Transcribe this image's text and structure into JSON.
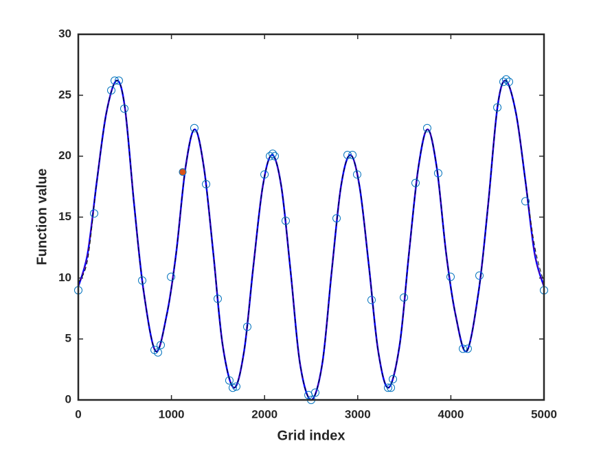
{
  "chart_data": {
    "type": "line",
    "xlabel": "Grid index",
    "ylabel": "Function value",
    "xlim": [
      0,
      5000
    ],
    "ylim": [
      0,
      30
    ],
    "xticks": [
      0,
      1000,
      2000,
      3000,
      4000,
      5000
    ],
    "yticks": [
      0,
      5,
      10,
      15,
      20,
      25,
      30
    ],
    "series": [
      {
        "color": "#0000ff",
        "style": "solid",
        "x": [
          0,
          100,
          200,
          300,
          410,
          500,
          600,
          700,
          830,
          950,
          1050,
          1150,
          1250,
          1350,
          1450,
          1550,
          1670,
          1780,
          1880,
          1980,
          2080,
          2180,
          2280,
          2380,
          2500,
          2620,
          2720,
          2820,
          2920,
          3020,
          3120,
          3220,
          3330,
          3450,
          3550,
          3650,
          3750,
          3850,
          3950,
          4050,
          4170,
          4300,
          4400,
          4500,
          4590,
          4700,
          4800,
          4900,
          5000
        ],
        "values": [
          9.3,
          12,
          18,
          23.5,
          26.2,
          24,
          16,
          9,
          4.0,
          7,
          12,
          19,
          22.2,
          19,
          12,
          4.5,
          1.0,
          4,
          11,
          17.5,
          20.1,
          17.5,
          10.5,
          3,
          0,
          3,
          10.5,
          17.5,
          20.1,
          17.5,
          11,
          4,
          1.0,
          4.5,
          12,
          19,
          22.2,
          19,
          12,
          7,
          4.0,
          9,
          16,
          24,
          26.2,
          23.5,
          18,
          12,
          9.3
        ]
      },
      {
        "color": "#000000",
        "style": "dashed",
        "x": [
          0,
          100,
          200,
          300,
          410,
          500,
          600,
          700,
          830,
          950,
          1050,
          1150,
          1250,
          1350,
          1450,
          1550,
          1670,
          1780,
          1880,
          1980,
          2080,
          2180,
          2280,
          2380,
          2500,
          2620,
          2720,
          2820,
          2920,
          3020,
          3120,
          3220,
          3330,
          3450,
          3550,
          3650,
          3750,
          3850,
          3950,
          4050,
          4170,
          4300,
          4400,
          4500,
          4590,
          4700,
          4800,
          4900,
          5000
        ],
        "values": [
          9.6,
          11.5,
          18,
          23.5,
          26.2,
          24,
          16,
          9,
          4.0,
          7,
          12,
          19,
          22.2,
          19,
          12,
          4.5,
          1.0,
          4,
          11,
          17.5,
          20.1,
          17.5,
          10.5,
          3,
          0,
          3,
          10.5,
          17.5,
          20.1,
          17.5,
          11,
          4,
          1.0,
          4.5,
          12,
          19,
          22.2,
          19,
          12,
          7,
          4.0,
          9,
          16,
          24,
          26.2,
          23.5,
          18,
          12.6,
          9.6
        ]
      },
      {
        "color": "#0072bd",
        "style": "circles",
        "x": [
          0,
          170,
          354,
          391,
          435,
          494,
          686,
          819,
          855,
          885,
          996,
          1246,
          1372,
          1497,
          1622,
          1659,
          1696,
          1814,
          1999,
          2058,
          2087,
          2109,
          2227,
          2471,
          2500,
          2544,
          2773,
          2891,
          2943,
          2994,
          3149,
          3326,
          3356,
          3378,
          3496,
          3621,
          3746,
          3864,
          3997,
          4130,
          4181,
          4307,
          4499,
          4565,
          4594,
          4624,
          4801,
          5000
        ],
        "values": [
          9.0,
          15.3,
          25.4,
          26.2,
          26.2,
          23.9,
          9.8,
          4.1,
          3.9,
          4.5,
          10.1,
          22.3,
          17.7,
          8.3,
          1.6,
          1.0,
          1.1,
          6.0,
          18.5,
          20.0,
          20.2,
          20.0,
          14.7,
          0.4,
          0.0,
          0.6,
          14.9,
          20.1,
          20.1,
          18.5,
          8.2,
          1.0,
          1.0,
          1.7,
          8.4,
          17.8,
          22.3,
          18.6,
          10.1,
          4.2,
          4.2,
          10.2,
          24.0,
          26.1,
          26.3,
          26.1,
          16.3,
          9.0
        ]
      },
      {
        "color": "#d95319",
        "style": "filled",
        "x": [
          1121
        ],
        "values": [
          18.7
        ]
      }
    ]
  }
}
